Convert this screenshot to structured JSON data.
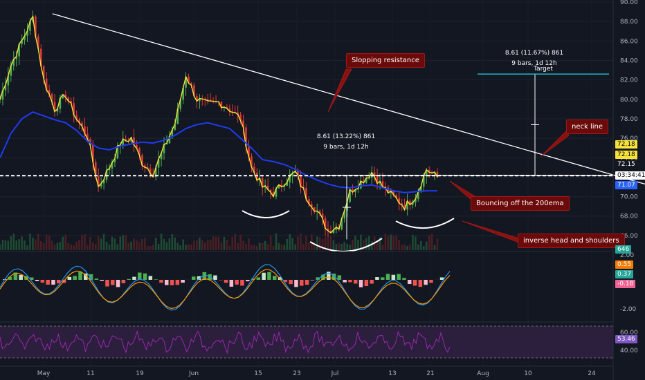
{
  "chart_data": {
    "type": "candlestick",
    "x_ticks": [
      "May",
      "11",
      "19",
      "Jun",
      "15",
      "23",
      "Jul",
      "13",
      "21",
      "Aug",
      "10",
      "24"
    ],
    "price_axis": {
      "ticks": [
        "90.00",
        "88.00",
        "86.00",
        "84.00",
        "82.00",
        "80.00",
        "78.00",
        "76.00",
        "74.00",
        "72.00",
        "70.00",
        "68.00",
        "66.00"
      ],
      "ylim": [
        64.5,
        90
      ]
    },
    "price_tags": [
      {
        "label": "72.18",
        "value": 72.18,
        "bg": "#f5e23a",
        "fg": "#000000"
      },
      {
        "label": "72.18",
        "value": 72.18,
        "bg": "#f5e23a",
        "fg": "#000000"
      },
      {
        "label": "72.15",
        "value": 72.15,
        "bg": "#131722",
        "fg": "#ffffff"
      },
      {
        "label": "03:34:41",
        "value": 70.9,
        "bg": "#ffffff",
        "fg": "#000000"
      },
      {
        "label": "71.07",
        "value": 70.3,
        "bg": "#2962ff",
        "fg": "#ffffff"
      }
    ],
    "volume_tag": "646",
    "close_price": 72.15,
    "price_series": [
      80.0,
      83.5,
      86.0,
      88.4,
      82.0,
      79.0,
      80.5,
      78.0,
      76.2,
      71.0,
      73.0,
      75.5,
      76.0,
      73.5,
      72.4,
      75.0,
      77.5,
      82.5,
      80.0,
      79.5,
      79.7,
      79.0,
      78.0,
      73.0,
      71.0,
      70.3,
      71.5,
      72.5,
      70.0,
      68.5,
      66.5,
      67.0,
      70.5,
      71.5,
      72.5,
      71.0,
      70.0,
      69.0,
      70.0,
      72.8,
      72.0
    ],
    "ema_200": [
      74.0,
      76.5,
      78.0,
      78.7,
      78.3,
      77.9,
      77.6,
      76.8,
      75.7,
      75.0,
      74.8,
      75.2,
      75.4,
      75.6,
      75.5,
      75.8,
      76.3,
      77.0,
      77.4,
      77.6,
      77.3,
      77.0,
      76.0,
      75.0,
      73.8,
      73.6,
      73.3,
      72.8,
      72.2,
      71.7,
      71.3,
      71.0,
      70.9,
      71.1,
      71.2,
      70.9,
      70.6,
      70.4,
      70.5,
      70.6,
      70.6
    ],
    "trendlines": [
      {
        "name": "sloping-resistance",
        "from": {
          "bar": 4.8,
          "value": 88.8
        },
        "to": {
          "bar": 60.5,
          "value": 70.8
        },
        "color": "#ffffff"
      },
      {
        "name": "neck-line",
        "from": {
          "bar": 29.0,
          "value": 72.2
        },
        "to": {
          "bar": 62.0,
          "value": 72.2
        },
        "color": "#ffffff"
      }
    ],
    "measurements": [
      {
        "text": "8.61 (13.22%) 861",
        "sub": "9 bars, 1d 12h"
      },
      {
        "text": "8.61 (11.67%) 861",
        "sub": "9 bars, 1d 12h",
        "target": "Target"
      }
    ],
    "annotations": [
      {
        "key": "sloping",
        "text": "Slopping resistance"
      },
      {
        "key": "neck",
        "text": "neck line"
      },
      {
        "key": "bounce",
        "text": "Bouncing off the 200ema"
      },
      {
        "key": "ihs",
        "text": "inverse head and shoulders"
      }
    ],
    "macd": {
      "ticks": [
        "2.00",
        "-2.00"
      ],
      "tags": [
        {
          "label": "0.55",
          "bg": "#f57c00",
          "fg": "#ffffff"
        },
        {
          "label": "0.37",
          "bg": "#26a69a",
          "fg": "#ffffff"
        },
        {
          "label": "-0.18",
          "bg": "#f06292",
          "fg": "#ffffff"
        }
      ]
    },
    "rsi": {
      "ticks": [
        "60.00",
        "40.00"
      ],
      "tags": [
        {
          "label": "53.46",
          "bg": "#7e57c2",
          "fg": "#ffffff"
        }
      ]
    },
    "colors": {
      "background": "#131722",
      "up": "#4caf50",
      "down": "#e53935",
      "ema": "#1e3cf0",
      "price_line": "#f5e23a",
      "rsi": "#9c27b0"
    }
  }
}
